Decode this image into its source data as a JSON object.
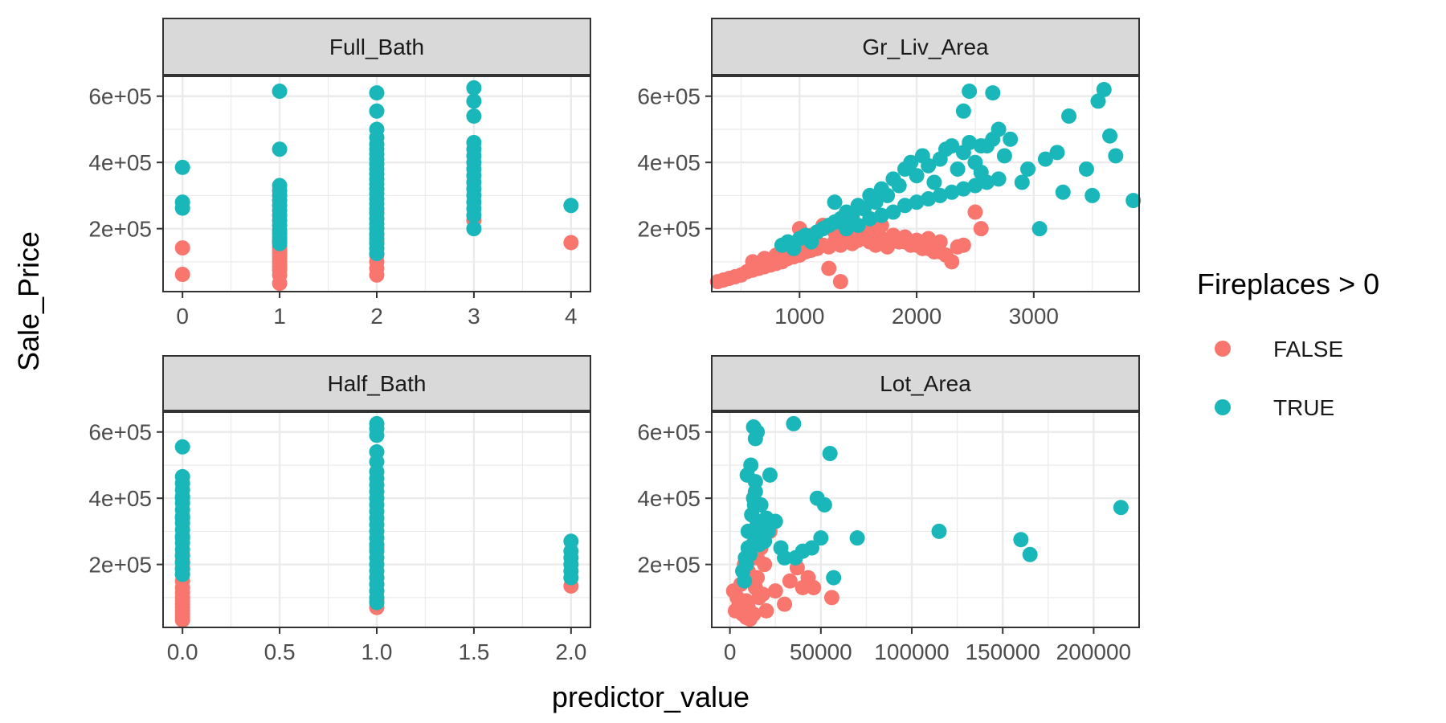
{
  "colors": {
    "false": "#F8766D",
    "true": "#19B7B9",
    "strip_fill": "#D9D9D9",
    "grid": "#EBEBEB",
    "border": "#333333"
  },
  "chart_data": {
    "type": "scatter",
    "xlabel": "predictor_value",
    "ylabel": "Sale_Price",
    "y_ticks": [
      200000,
      400000,
      600000
    ],
    "y_tick_labels": [
      "2e+05",
      "4e+05",
      "6e+05"
    ],
    "ylim": [
      10000,
      660000
    ],
    "legend": {
      "title": "Fireplaces > 0",
      "position": "right",
      "entries": [
        {
          "key": "false",
          "label": "FALSE"
        },
        {
          "key": "true",
          "label": "TRUE"
        }
      ]
    },
    "panels": [
      {
        "title": "Full_Bath",
        "xlim": [
          -0.2,
          4.2
        ],
        "x_ticks": [
          0,
          1,
          2,
          3,
          4
        ],
        "x_tick_labels": [
          "0",
          "1",
          "2",
          "3",
          "4"
        ],
        "series": [
          {
            "key": "true",
            "x": [
              0,
              0,
              0,
              1,
              1,
              1,
              1,
              1,
              1,
              1,
              1,
              1,
              1,
              1,
              1,
              1,
              1,
              1,
              1,
              2,
              2,
              2,
              2,
              2,
              2,
              2,
              2,
              2,
              2,
              2,
              2,
              2,
              2,
              2,
              2,
              2,
              2,
              2,
              2,
              2,
              2,
              2,
              2,
              2,
              2,
              2,
              3,
              3,
              3,
              3,
              3,
              3,
              3,
              3,
              3,
              3,
              3,
              3,
              3,
              3,
              3,
              3,
              4
            ],
            "y": [
              385000,
              280000,
              262000,
              615000,
              440000,
              330000,
              315000,
              300000,
              285000,
              270000,
              255000,
              240000,
              225000,
              210000,
              195000,
              185000,
              175000,
              165000,
              155000,
              610000,
              555000,
              500000,
              475000,
              455000,
              440000,
              425000,
              410000,
              395000,
              380000,
              365000,
              350000,
              335000,
              320000,
              305000,
              290000,
              275000,
              260000,
              245000,
              230000,
              215000,
              200000,
              185000,
              170000,
              155000,
              140000,
              125000,
              625000,
              585000,
              540000,
              460000,
              440000,
              420000,
              400000,
              380000,
              360000,
              340000,
              320000,
              300000,
              280000,
              260000,
              240000,
              200000,
              270000
            ]
          },
          {
            "key": "false",
            "x": [
              0,
              0,
              1,
              1,
              1,
              1,
              1,
              1,
              1,
              1,
              1,
              1,
              1,
              2,
              2,
              2,
              2,
              2,
              2,
              2,
              2,
              2,
              2,
              3,
              4
            ],
            "y": [
              142000,
              62000,
              160000,
              145000,
              135000,
              125000,
              115000,
              105000,
              95000,
              85000,
              75000,
              60000,
              35000,
              250000,
              230000,
              200000,
              180000,
              160000,
              140000,
              120000,
              100000,
              80000,
              60000,
              225000,
              158000
            ]
          }
        ]
      },
      {
        "title": "Gr_Liv_Area",
        "xlim": [
          250,
          3900
        ],
        "x_ticks": [
          1000,
          2000,
          3000
        ],
        "x_tick_labels": [
          "1000",
          "2000",
          "3000"
        ],
        "series": [
          {
            "key": "true",
            "x": [
              850,
              900,
              950,
              1000,
              1050,
              1100,
              1150,
              1200,
              1250,
              1300,
              1350,
              1400,
              1450,
              1500,
              1550,
              1600,
              1650,
              1700,
              1750,
              1800,
              1850,
              1900,
              1950,
              2000,
              2050,
              2100,
              2150,
              2200,
              2250,
              2300,
              2350,
              2400,
              2450,
              2500,
              2550,
              2600,
              2650,
              2700,
              2750,
              2800,
              2900,
              2950,
              3050,
              3100,
              3200,
              3250,
              3300,
              3450,
              3500,
              3550,
              3600,
              3650,
              3700,
              3850,
              1400,
              1600,
              1800,
              2000,
              2200,
              2400,
              2600,
              1500,
              1700,
              1900,
              2100,
              2300,
              2500,
              2700,
              1300,
              2450,
              2650,
              2400,
              2550
            ],
            "y": [
              150000,
              160000,
              140000,
              170000,
              180000,
              160000,
              190000,
              200000,
              210000,
              220000,
              230000,
              250000,
              240000,
              270000,
              260000,
              300000,
              280000,
              320000,
              300000,
              350000,
              330000,
              380000,
              400000,
              360000,
              420000,
              390000,
              340000,
              410000,
              440000,
              450000,
              380000,
              430000,
              460000,
              400000,
              370000,
              450000,
              470000,
              500000,
              420000,
              470000,
              340000,
              380000,
              200000,
              410000,
              430000,
              310000,
              540000,
              380000,
              300000,
              585000,
              620000,
              480000,
              420000,
              285000,
              200000,
              230000,
              250000,
              280000,
              300000,
              320000,
              340000,
              210000,
              240000,
              270000,
              290000,
              310000,
              330000,
              350000,
              280000,
              615000,
              610000,
              555000,
              450000
            ]
          },
          {
            "key": "false",
            "x": [
              300,
              350,
              400,
              450,
              500,
              550,
              600,
              650,
              700,
              750,
              800,
              850,
              900,
              950,
              1000,
              1050,
              1100,
              1150,
              1200,
              1250,
              1300,
              1350,
              1400,
              1450,
              1500,
              1550,
              1600,
              1650,
              1700,
              1750,
              1800,
              1850,
              1900,
              1950,
              2000,
              2050,
              2100,
              2150,
              2200,
              2250,
              2300,
              2350,
              2400,
              2500,
              2550,
              600,
              700,
              800,
              900,
              1000,
              1100,
              1200,
              1300,
              1400,
              1500,
              1600,
              1700,
              1800,
              1900,
              2000,
              2100,
              2200,
              1000,
              1250,
              1350
            ],
            "y": [
              40000,
              45000,
              50000,
              55000,
              60000,
              70000,
              75000,
              80000,
              85000,
              90000,
              95000,
              100000,
              110000,
              115000,
              120000,
              130000,
              135000,
              140000,
              150000,
              145000,
              160000,
              150000,
              170000,
              155000,
              165000,
              175000,
              160000,
              150000,
              170000,
              145000,
              180000,
              160000,
              175000,
              150000,
              165000,
              140000,
              170000,
              130000,
              160000,
              120000,
              100000,
              145000,
              150000,
              250000,
              200000,
              100000,
              110000,
              120000,
              130000,
              200000,
              180000,
              210000,
              190000,
              180000,
              200000,
              190000,
              210000,
              170000,
              160000,
              150000,
              140000,
              130000,
              160000,
              80000,
              40000
            ]
          }
        ]
      },
      {
        "title": "Half_Bath",
        "xlim": [
          -0.1,
          2.1
        ],
        "x_ticks": [
          0.0,
          0.5,
          1.0,
          1.5,
          2.0
        ],
        "x_tick_labels": [
          "0.0",
          "0.5",
          "1.0",
          "1.5",
          "2.0"
        ],
        "series": [
          {
            "key": "true",
            "x": [
              0,
              0,
              0,
              0,
              0,
              0,
              0,
              0,
              0,
              0,
              0,
              0,
              0,
              0,
              0,
              0,
              0,
              0,
              0,
              0,
              1,
              1,
              1,
              1,
              1,
              1,
              1,
              1,
              1,
              1,
              1,
              1,
              1,
              1,
              1,
              1,
              1,
              1,
              1,
              1,
              1,
              1,
              1,
              1,
              1,
              1,
              2,
              2,
              2,
              2,
              2,
              2
            ],
            "y": [
              555000,
              465000,
              445000,
              425000,
              405000,
              385000,
              365000,
              345000,
              325000,
              305000,
              285000,
              265000,
              245000,
              225000,
              205000,
              185000,
              170000,
              400000,
              340000,
              280000,
              625000,
              610000,
              590000,
              540000,
              510000,
              480000,
              460000,
              440000,
              420000,
              400000,
              380000,
              360000,
              340000,
              320000,
              300000,
              280000,
              260000,
              240000,
              220000,
              200000,
              180000,
              160000,
              140000,
              120000,
              100000,
              85000,
              270000,
              240000,
              220000,
              200000,
              180000,
              160000
            ]
          },
          {
            "key": "false",
            "x": [
              0,
              0,
              0,
              0,
              0,
              0,
              0,
              0,
              0,
              0,
              0,
              0,
              0,
              0,
              0,
              1,
              1,
              1,
              1,
              1,
              1,
              2
            ],
            "y": [
              230000,
              210000,
              190000,
              170000,
              150000,
              130000,
              115000,
              100000,
              90000,
              80000,
              70000,
              60000,
              50000,
              40000,
              32000,
              250000,
              160000,
              140000,
              120000,
              90000,
              70000,
              135000
            ]
          }
        ]
      },
      {
        "title": "Lot_Area",
        "xlim": [
          -10000,
          225000
        ],
        "x_ticks": [
          0,
          50000,
          100000,
          150000,
          200000
        ],
        "x_tick_labels": [
          "0",
          "50000",
          "100000",
          "150000",
          "200000"
        ],
        "series": [
          {
            "key": "true",
            "x": [
              8000,
              9000,
              10000,
              11000,
              12000,
              13000,
              14000,
              15000,
              16000,
              17000,
              18000,
              20000,
              22000,
              25000,
              28000,
              30000,
              35000,
              36000,
              40000,
              45000,
              48000,
              50000,
              52000,
              55000,
              57000,
              70000,
              115000,
              160000,
              165000,
              215000,
              10000,
              12000,
              14000,
              9500,
              11500,
              13500,
              15500,
              8500,
              10500,
              12500,
              14500,
              16500,
              7000,
              9000,
              11000,
              13000,
              15000,
              17000,
              19000,
              21000,
              18000,
              13000,
              15000,
              14000,
              20000
            ],
            "y": [
              150000,
              200000,
              250000,
              300000,
              350000,
              400000,
              450000,
              330000,
              260000,
              380000,
              290000,
              310000,
              470000,
              330000,
              250000,
              220000,
              625000,
              220000,
              240000,
              250000,
              400000,
              280000,
              380000,
              535000,
              160000,
              280000,
              300000,
              275000,
              230000,
              372000,
              300000,
              350000,
              420000,
              470000,
              500000,
              380000,
              280000,
              220000,
              240000,
              260000,
              280000,
              300000,
              180000,
              200000,
              230000,
              260000,
              290000,
              320000,
              270000,
              300000,
              310000,
              615000,
              600000,
              580000,
              340000
            ]
          },
          {
            "key": "false",
            "x": [
              2000,
              4000,
              5000,
              6000,
              7000,
              8000,
              9000,
              10000,
              11000,
              12000,
              13000,
              14000,
              15000,
              16000,
              18000,
              20000,
              22000,
              25000,
              30000,
              33000,
              37000,
              40000,
              43000,
              46000,
              56000,
              3000,
              7000,
              9000,
              11000,
              13000,
              15000,
              17000,
              19000,
              6000,
              10000
            ],
            "y": [
              120000,
              100000,
              80000,
              140000,
              60000,
              200000,
              90000,
              180000,
              40000,
              150000,
              220000,
              130000,
              160000,
              100000,
              110000,
              60000,
              300000,
              120000,
              80000,
              150000,
              190000,
              130000,
              160000,
              130000,
              100000,
              60000,
              50000,
              40000,
              35000,
              50000,
              220000,
              250000,
              200000,
              90000,
              70000
            ]
          }
        ]
      }
    ]
  }
}
